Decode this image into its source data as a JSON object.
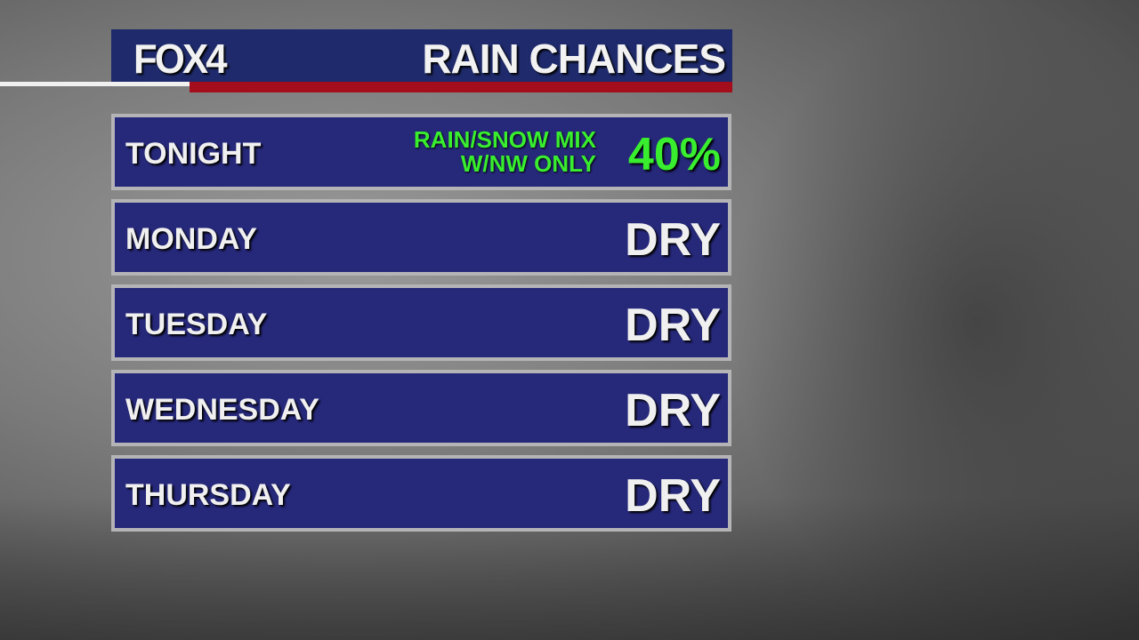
{
  "header": {
    "logo": "FOX4",
    "title": "RAIN CHANCES"
  },
  "colors": {
    "navy": "#26287a",
    "red": "#a30d1c",
    "green": "#39ee2e",
    "border": "#b4b4b6"
  },
  "rows": [
    {
      "day": "TONIGHT",
      "note_line1": "RAIN/SNOW MIX",
      "note_line2": "W/NW ONLY",
      "value": "40%"
    },
    {
      "day": "MONDAY",
      "value": "DRY"
    },
    {
      "day": "TUESDAY",
      "value": "DRY"
    },
    {
      "day": "WEDNESDAY",
      "value": "DRY"
    },
    {
      "day": "THURSDAY",
      "value": "DRY"
    }
  ]
}
